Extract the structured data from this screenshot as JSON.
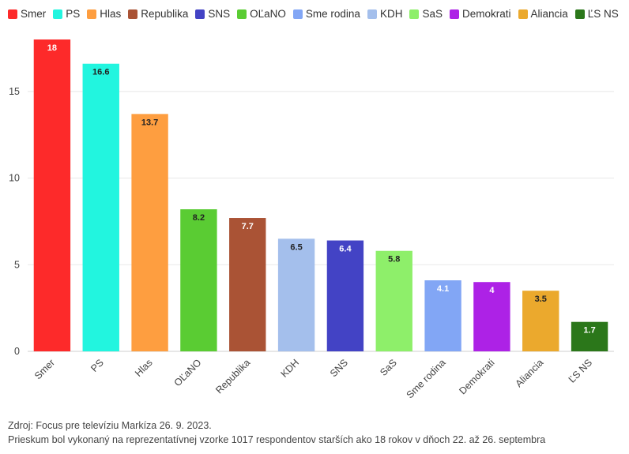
{
  "chart_data": {
    "type": "bar",
    "categories": [
      "Smer",
      "PS",
      "Hlas",
      "OĽaNO",
      "Republika",
      "KDH",
      "SNS",
      "SaS",
      "Sme rodina",
      "Demokrati",
      "Aliancia",
      "ĽS NS"
    ],
    "values": [
      18,
      16.6,
      13.7,
      8.2,
      7.7,
      6.5,
      6.4,
      5.8,
      4.1,
      4,
      3.5,
      1.7
    ],
    "data_labels": [
      "18",
      "16.6",
      "13.7",
      "8.2",
      "7.7",
      "6.5",
      "6.4",
      "5.8",
      "4.1",
      "4",
      "3.5",
      "1.7"
    ],
    "colors": [
      "#fd2a2a",
      "#22f5df",
      "#fe9e40",
      "#5acc33",
      "#aa5335",
      "#a4bfec",
      "#4343c5",
      "#8eef6a",
      "#82a6f5",
      "#ad22e6",
      "#eba92d",
      "#2b771a"
    ],
    "label_colors": [
      "#ffffff",
      "#222222",
      "#222222",
      "#222222",
      "#ffffff",
      "#222222",
      "#ffffff",
      "#222222",
      "#ffffff",
      "#ffffff",
      "#222222",
      "#ffffff"
    ],
    "legend": [
      {
        "label": "Smer",
        "color": "#fd2a2a"
      },
      {
        "label": "PS",
        "color": "#22f5df"
      },
      {
        "label": "Hlas",
        "color": "#fe9e40"
      },
      {
        "label": "Republika",
        "color": "#aa5335"
      },
      {
        "label": "SNS",
        "color": "#4343c5"
      },
      {
        "label": "OĽaNO",
        "color": "#5acc33"
      },
      {
        "label": "Sme rodina",
        "color": "#82a6f5"
      },
      {
        "label": "KDH",
        "color": "#a4bfec"
      },
      {
        "label": "SaS",
        "color": "#8eef6a"
      },
      {
        "label": "Demokrati",
        "color": "#ad22e6"
      },
      {
        "label": "Aliancia",
        "color": "#eba92d"
      },
      {
        "label": "ĽS NS",
        "color": "#2b771a"
      }
    ],
    "y_ticks": [
      "0",
      "5",
      "10",
      "15"
    ],
    "ylim": [
      0,
      18
    ],
    "grid": true,
    "legend_position": "top-left"
  },
  "footer": {
    "source": "Zdroj: Focus pre televíziu Markíza 26. 9. 2023.",
    "note": "Prieskum bol vykonaný na reprezentatívnej vzorke 1017 respondentov starších ako 18 rokov v dňoch 22. až 26. septembra"
  }
}
